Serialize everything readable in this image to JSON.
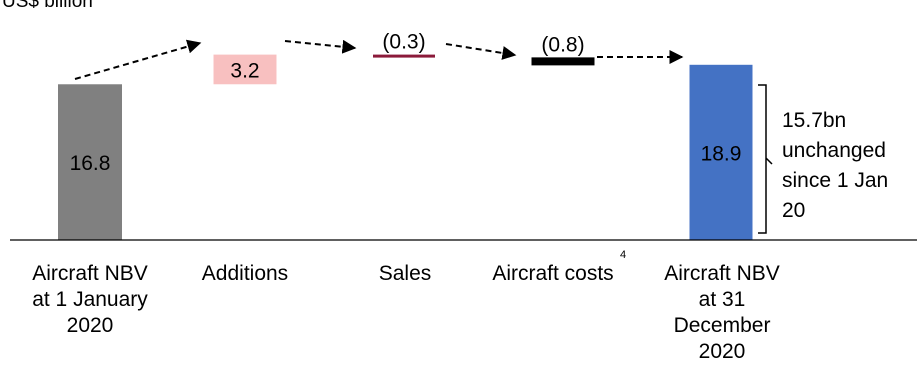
{
  "chart_data": {
    "type": "bar",
    "subtype": "waterfall",
    "unit_label": "US$ billion",
    "categories": [
      [
        "Aircraft NBV",
        "at 1 January",
        "2020"
      ],
      [
        "Additions"
      ],
      [
        "Sales"
      ],
      [
        "Aircraft costs"
      ],
      [
        "Aircraft NBV",
        "at 31",
        "December",
        "2020"
      ]
    ],
    "values": [
      16.8,
      3.2,
      -0.3,
      -0.8,
      18.9
    ],
    "value_labels": [
      "16.8",
      "3.2",
      "(0.3)",
      "(0.8)",
      "18.9"
    ],
    "bar_kinds": [
      "total",
      "increase",
      "decrease",
      "decrease",
      "total"
    ],
    "colors": {
      "start_total": "#808080",
      "increase": "#f8c0c0",
      "decrease_sales": "#8b1a3a",
      "decrease_costs": "#000000",
      "end_total": "#4472c4",
      "total_label_text": "#ffffff",
      "arrow": "#000000"
    },
    "footnote_marker": "4",
    "bracket_annotation": [
      "15.7bn",
      "unchanged",
      "since 1 Jan",
      "20"
    ],
    "connectors": "dashed arrows",
    "grid": false,
    "legend": "none"
  }
}
